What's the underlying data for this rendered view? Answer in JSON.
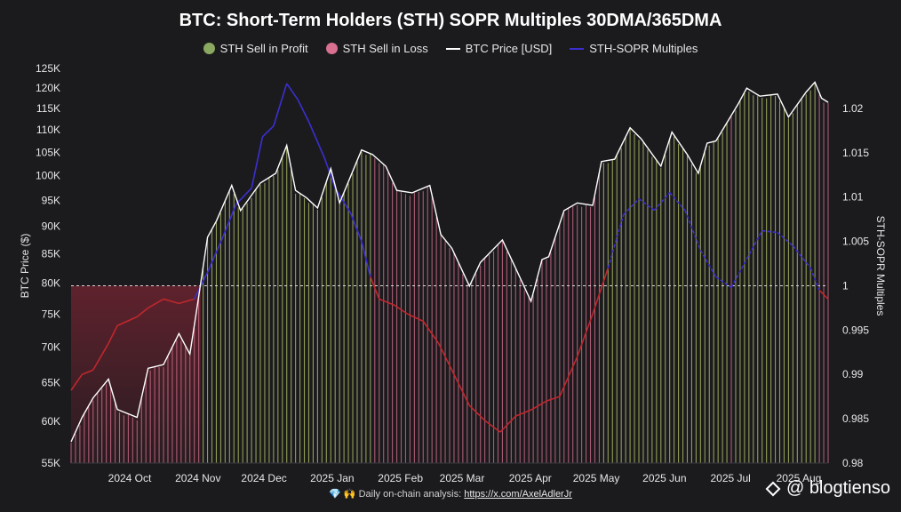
{
  "title": "BTC: Short-Term Holders (STH) SOPR Multiples 30DMA/365DMA",
  "legend": [
    {
      "label": "STH Sell in Profit",
      "color": "#8aa860",
      "kind": "dot"
    },
    {
      "label": "STH Sell in Loss",
      "color": "#d9708f",
      "kind": "dot"
    },
    {
      "label": "BTC Price [USD]",
      "color": "#ffffff",
      "kind": "line"
    },
    {
      "label": "STH-SOPR Multiples",
      "color": "#3b2fd0",
      "kind": "line"
    }
  ],
  "footer": {
    "icons": "💎 🙌",
    "text": "Daily on-chain analysis:",
    "link": "https://x.com/AxelAdlerJr"
  },
  "watermark": "@ blogtienso",
  "colors": {
    "profit": "#b9c86a",
    "loss": "#d9708f",
    "price": "#ffffff",
    "sopr_above": "#3b2fd0",
    "sopr_below": "#c0272d",
    "bg": "#1b1b1e"
  },
  "chart_data": {
    "type": "line",
    "title": "BTC: Short-Term Holders (STH) SOPR Multiples 30DMA/365DMA",
    "xlabel": "",
    "ylabel": "BTC Price ($)",
    "y2label": "STH-SOPR Multiples",
    "y_ticks": [
      "55K",
      "60K",
      "65K",
      "70K",
      "75K",
      "80K",
      "85K",
      "90K",
      "95K",
      "100K",
      "105K",
      "110K",
      "115K",
      "120K",
      "125K"
    ],
    "y_tick_values": [
      55000,
      60000,
      65000,
      70000,
      75000,
      80000,
      85000,
      90000,
      95000,
      100000,
      105000,
      110000,
      115000,
      120000,
      125000
    ],
    "y_scale": "log",
    "ylim": [
      55000,
      125000
    ],
    "y2_ticks": [
      "0.98",
      "0.985",
      "0.99",
      "0.995",
      "1",
      "1.005",
      "1.01",
      "1.015",
      "1.02"
    ],
    "y2_tick_values": [
      0.98,
      0.985,
      0.99,
      0.995,
      1,
      1.005,
      1.01,
      1.015,
      1.02
    ],
    "y2lim": [
      0.98,
      1.0245
    ],
    "x_ticks": [
      "2024 Oct",
      "2024 Nov",
      "2024 Dec",
      "2025 Jan",
      "2025 Feb",
      "2025 Mar",
      "2025 Apr",
      "2025 May",
      "2025 Jun",
      "2025 Jul",
      "2025 Aug"
    ],
    "x_tick_dates": [
      "2024-10-01",
      "2024-11-01",
      "2024-12-01",
      "2025-01-01",
      "2025-02-01",
      "2025-03-01",
      "2025-04-01",
      "2025-05-01",
      "2025-06-01",
      "2025-07-01",
      "2025-08-01"
    ],
    "xlim": [
      "2024-09-10",
      "2025-08-20"
    ],
    "reference_line": 1,
    "grid": false,
    "legend_position": "top",
    "series": [
      {
        "name": "BTC Price [USD]",
        "points": [
          [
            "2024-09-10",
            57500
          ],
          [
            "2024-09-15",
            60500
          ],
          [
            "2024-09-20",
            63000
          ],
          [
            "2024-09-27",
            65500
          ],
          [
            "2024-10-01",
            61500
          ],
          [
            "2024-10-10",
            60500
          ],
          [
            "2024-10-15",
            67000
          ],
          [
            "2024-10-22",
            67500
          ],
          [
            "2024-10-29",
            72000
          ],
          [
            "2024-11-03",
            69000
          ],
          [
            "2024-11-06",
            75500
          ],
          [
            "2024-11-11",
            88000
          ],
          [
            "2024-11-15",
            91000
          ],
          [
            "2024-11-22",
            98000
          ],
          [
            "2024-11-26",
            93000
          ],
          [
            "2024-12-05",
            98500
          ],
          [
            "2024-12-12",
            100500
          ],
          [
            "2024-12-17",
            106500
          ],
          [
            "2024-12-21",
            97000
          ],
          [
            "2024-12-26",
            95500
          ],
          [
            "2024-12-31",
            93500
          ],
          [
            "2025-01-06",
            101500
          ],
          [
            "2025-01-10",
            94500
          ],
          [
            "2025-01-20",
            105500
          ],
          [
            "2025-01-25",
            104500
          ],
          [
            "2025-01-31",
            102000
          ],
          [
            "2025-02-05",
            97000
          ],
          [
            "2025-02-12",
            96500
          ],
          [
            "2025-02-20",
            98000
          ],
          [
            "2025-02-25",
            88500
          ],
          [
            "2025-03-02",
            86000
          ],
          [
            "2025-03-10",
            79500
          ],
          [
            "2025-03-15",
            83500
          ],
          [
            "2025-03-25",
            87500
          ],
          [
            "2025-03-31",
            82500
          ],
          [
            "2025-04-07",
            77000
          ],
          [
            "2025-04-12",
            84000
          ],
          [
            "2025-04-15",
            84500
          ],
          [
            "2025-04-22",
            93000
          ],
          [
            "2025-04-28",
            94500
          ],
          [
            "2025-05-05",
            94000
          ],
          [
            "2025-05-09",
            103000
          ],
          [
            "2025-05-15",
            103500
          ],
          [
            "2025-05-22",
            110500
          ],
          [
            "2025-05-27",
            108000
          ],
          [
            "2025-06-05",
            102000
          ],
          [
            "2025-06-10",
            109500
          ],
          [
            "2025-06-17",
            104500
          ],
          [
            "2025-06-22",
            100500
          ],
          [
            "2025-06-26",
            107000
          ],
          [
            "2025-06-30",
            107500
          ],
          [
            "2025-07-10",
            116000
          ],
          [
            "2025-07-14",
            120000
          ],
          [
            "2025-07-20",
            118000
          ],
          [
            "2025-07-28",
            118500
          ],
          [
            "2025-08-02",
            113000
          ],
          [
            "2025-08-10",
            119000
          ],
          [
            "2025-08-14",
            121500
          ],
          [
            "2025-08-17",
            117500
          ],
          [
            "2025-08-20",
            116500
          ]
        ]
      },
      {
        "name": "STH-SOPR Multiples",
        "points": [
          [
            "2024-09-10",
            0.9882
          ],
          [
            "2024-09-15",
            0.99
          ],
          [
            "2024-09-20",
            0.9905
          ],
          [
            "2024-09-27",
            0.9935
          ],
          [
            "2024-10-01",
            0.9955
          ],
          [
            "2024-10-10",
            0.9965
          ],
          [
            "2024-10-15",
            0.9975
          ],
          [
            "2024-10-22",
            0.9985
          ],
          [
            "2024-10-29",
            0.998
          ],
          [
            "2024-11-05",
            0.9985
          ],
          [
            "2024-11-11",
            1.0015
          ],
          [
            "2024-11-18",
            1.0055
          ],
          [
            "2024-11-24",
            1.0092
          ],
          [
            "2024-12-01",
            1.011
          ],
          [
            "2024-12-06",
            1.0168
          ],
          [
            "2024-12-11",
            1.018
          ],
          [
            "2024-12-17",
            1.0228
          ],
          [
            "2024-12-22",
            1.021
          ],
          [
            "2024-12-27",
            1.0185
          ],
          [
            "2025-01-03",
            1.0145
          ],
          [
            "2025-01-08",
            1.011
          ],
          [
            "2025-01-15",
            1.0082
          ],
          [
            "2025-01-20",
            1.005
          ],
          [
            "2025-01-24",
            1.001
          ],
          [
            "2025-01-28",
            0.9985
          ],
          [
            "2025-02-04",
            0.9978
          ],
          [
            "2025-02-10",
            0.9968
          ],
          [
            "2025-02-17",
            0.996
          ],
          [
            "2025-02-24",
            0.9935
          ],
          [
            "2025-03-03",
            0.99
          ],
          [
            "2025-03-10",
            0.9865
          ],
          [
            "2025-03-17",
            0.9848
          ],
          [
            "2025-03-24",
            0.9835
          ],
          [
            "2025-03-31",
            0.9853
          ],
          [
            "2025-04-07",
            0.986
          ],
          [
            "2025-04-14",
            0.987
          ],
          [
            "2025-04-20",
            0.9875
          ],
          [
            "2025-04-28",
            0.992
          ],
          [
            "2025-05-05",
            0.9968
          ],
          [
            "2025-05-12",
            1.002
          ],
          [
            "2025-05-19",
            1.008
          ],
          [
            "2025-05-26",
            1.0098
          ],
          [
            "2025-06-02",
            1.0085
          ],
          [
            "2025-06-09",
            1.0105
          ],
          [
            "2025-06-16",
            1.0085
          ],
          [
            "2025-06-23",
            1.004
          ],
          [
            "2025-06-30",
            1.001
          ],
          [
            "2025-07-07",
            0.9998
          ],
          [
            "2025-07-14",
            1.003
          ],
          [
            "2025-07-21",
            1.0062
          ],
          [
            "2025-07-28",
            1.006
          ],
          [
            "2025-08-04",
            1.0045
          ],
          [
            "2025-08-12",
            1.002
          ],
          [
            "2025-08-16",
            0.9995
          ],
          [
            "2025-08-20",
            0.9985
          ]
        ]
      }
    ]
  }
}
